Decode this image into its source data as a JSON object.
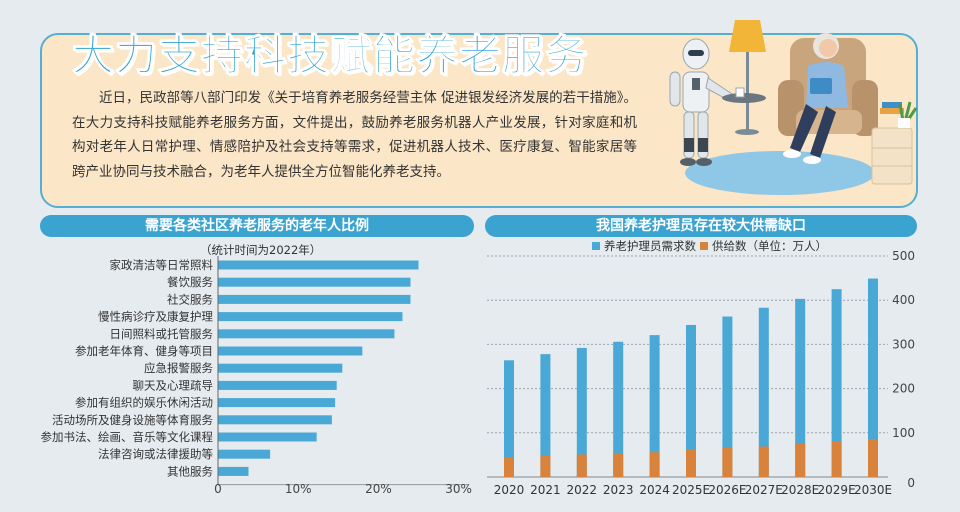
{
  "header": {
    "title": "大力支持科技赋能养老服务",
    "intro": "近日，民政部等八部门印发《关于培育养老服务经营主体 促进银发经济发展的若干措施》。在大力支持科技赋能养老服务方面，文件提出，鼓励养老服务机器人产业发展，针对家庭和机构对老年人日常护理、情感陪护及社会支持等需求，促进机器人技术、医疗康复、智能家居等跨产业协同与技术融合，为老年人提供全方位智能化养老支持。"
  },
  "left_section": {
    "title": "需要各类社区养老服务的老年人比例",
    "note": "（统计时间为2022年）"
  },
  "right_section": {
    "title": "我国养老护理员存在较大供需缺口"
  },
  "colors": {
    "accent": "#3aa3d0",
    "bar_blue": "#4aa8d6",
    "bar_orange": "#d9823c",
    "title_blue": "#2a9fd0"
  },
  "chart_data": [
    {
      "type": "bar",
      "orientation": "horizontal",
      "title": "需要各类社区养老服务的老年人比例",
      "categories": [
        "家政清洁等日常照料",
        "餐饮服务",
        "社交服务",
        "慢性病诊疗及康复护理",
        "日间照料或托管服务",
        "参加老年体育、健身等项目",
        "应急报警服务",
        "聊天及心理疏导",
        "参加有组织的娱乐休闲活动",
        "活动场所及健身设施等体育服务",
        "参加书法、绘画、音乐等文化课程",
        "法律咨询或法律援助等",
        "其他服务"
      ],
      "values": [
        25,
        24,
        24,
        23,
        22,
        18,
        15.5,
        14.8,
        14.6,
        14.2,
        12.3,
        6.5,
        3.8
      ],
      "xlim": [
        0,
        30
      ],
      "x_ticks": [
        "0",
        "10%",
        "20%",
        "30%"
      ],
      "grid": false
    },
    {
      "type": "bar",
      "title": "我国养老护理员存在较大供需缺口",
      "categories": [
        "2020",
        "2021",
        "2022",
        "2023",
        "2024",
        "2025E",
        "2026E",
        "2027E",
        "2028E",
        "2029E",
        "2030E"
      ],
      "series": [
        {
          "name": "养老护理员需求数",
          "values": [
            264,
            278,
            292,
            306,
            321,
            344,
            363,
            383,
            403,
            425,
            449
          ]
        },
        {
          "name": "供给数（单位：万人）",
          "values": [
            45,
            48,
            51,
            54,
            56,
            62,
            66,
            69,
            75,
            80,
            85
          ]
        }
      ],
      "ylim": [
        0,
        500
      ],
      "y_ticks": [
        "0",
        "100",
        "200",
        "300",
        "400",
        "500"
      ],
      "legend_position": "top",
      "grid": true
    }
  ]
}
